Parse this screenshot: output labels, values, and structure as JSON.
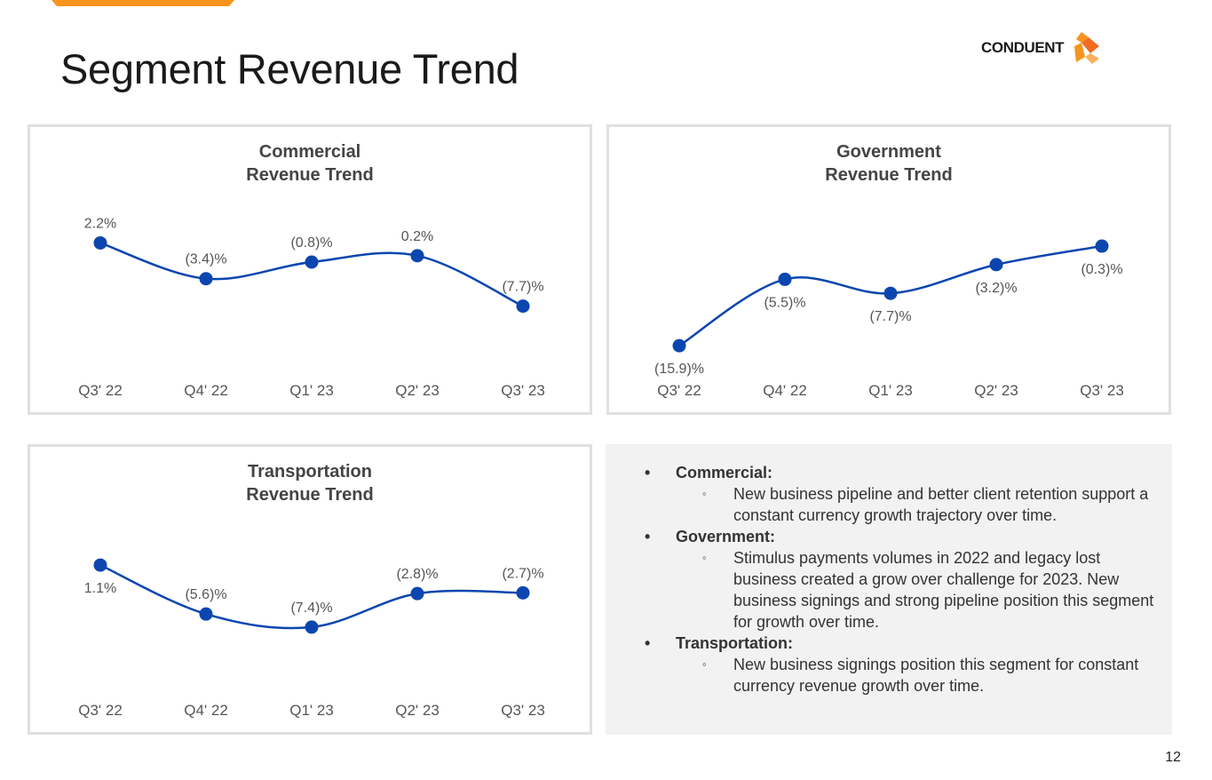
{
  "slide": {
    "title": "Segment Revenue Trend",
    "page_number": "12"
  },
  "logo": {
    "text": "CONDUENT",
    "icon": "conduent-logo-icon"
  },
  "colors": {
    "accent_orange": "#F7941D",
    "line_blue": "#0B46B0",
    "panel_border": "#E0E0E0",
    "notes_bg": "#F2F2F2"
  },
  "chart_data": [
    {
      "type": "line",
      "title": "Commercial Revenue Trend",
      "title_lines": [
        "Commercial",
        "Revenue Trend"
      ],
      "categories": [
        "Q3' 22",
        "Q4' 22",
        "Q1' 23",
        "Q2' 23",
        "Q3' 23"
      ],
      "values": [
        2.2,
        -3.4,
        -0.8,
        0.2,
        -7.7
      ],
      "labels": [
        "2.2%",
        "(3.4)%",
        "(0.8)%",
        "0.2%",
        "(7.7)%"
      ],
      "label_positions": [
        "above",
        "above",
        "above",
        "above",
        "above"
      ],
      "ylim": [
        -20,
        12
      ]
    },
    {
      "type": "line",
      "title": "Government Revenue Trend",
      "title_lines": [
        "Government",
        "Revenue Trend"
      ],
      "categories": [
        "Q3' 22",
        "Q4' 22",
        "Q1' 23",
        "Q2' 23",
        "Q3' 23"
      ],
      "values": [
        -15.9,
        -5.5,
        -7.7,
        -3.2,
        -0.3
      ],
      "labels": [
        "(15.9)%",
        "(5.5)%",
        "(7.7)%",
        "(3.2)%",
        "(0.3)%"
      ],
      "label_positions": [
        "below",
        "below",
        "below",
        "below",
        "below"
      ],
      "ylim": [
        -22,
        10
      ]
    },
    {
      "type": "line",
      "title": "Transportation Revenue Trend",
      "title_lines": [
        "Transportation",
        "Revenue Trend"
      ],
      "categories": [
        "Q3' 22",
        "Q4' 22",
        "Q1' 23",
        "Q2' 23",
        "Q3' 23"
      ],
      "values": [
        1.1,
        -5.6,
        -7.4,
        -2.8,
        -2.7
      ],
      "labels": [
        "1.1%",
        "(5.6)%",
        "(7.4)%",
        "(2.8)%",
        "(2.7)%"
      ],
      "label_positions": [
        "below",
        "above",
        "above",
        "above",
        "above"
      ],
      "ylim": [
        -18,
        10
      ]
    }
  ],
  "notes": [
    {
      "heading": "Commercial:",
      "points": [
        "New business pipeline and better client retention support a constant currency growth trajectory over time."
      ]
    },
    {
      "heading": "Government:",
      "points": [
        "Stimulus payments volumes in 2022 and legacy lost business created a grow over challenge for 2023. New business signings and strong pipeline position this segment for growth over time."
      ]
    },
    {
      "heading": "Transportation:",
      "points": [
        "New business signings position this segment for constant currency revenue growth over time."
      ]
    }
  ]
}
